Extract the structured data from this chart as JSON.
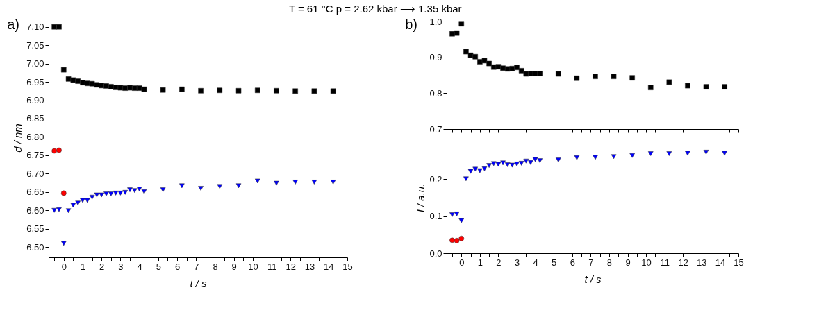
{
  "chart_data": [
    {
      "type": "scatter",
      "title": "T = 61 °C   p = 2.62 kbar ⟶ 1.35 kbar",
      "xlabel": "t / s",
      "ylabel": "d / nm",
      "annotations": [
        "a)"
      ],
      "x": [
        -0.5,
        -0.25,
        0,
        0.25,
        0.5,
        0.75,
        1,
        1.25,
        1.5,
        1.75,
        2,
        2.25,
        2.5,
        2.75,
        3,
        3.25,
        3.5,
        3.75,
        4,
        4.25,
        5.25,
        6.25,
        7.25,
        8.25,
        9.25,
        10.25,
        11.25,
        12.25,
        13.25,
        14.25
      ],
      "xlim": [
        -0.8,
        15
      ],
      "xticks": [
        0,
        1,
        2,
        3,
        4,
        5,
        6,
        7,
        8,
        9,
        10,
        11,
        12,
        13,
        14,
        15
      ],
      "ylim": [
        6.472,
        7.124
      ],
      "yticks": [
        {
          "value": 6.5,
          "label": "6.50"
        },
        6.55,
        {
          "value": 6.6,
          "label": "6.60"
        },
        6.65,
        {
          "value": 6.7,
          "label": "6.70"
        },
        6.75,
        {
          "value": 6.8,
          "label": "6.80"
        },
        6.85,
        {
          "value": 6.9,
          "label": "6.90"
        },
        6.95,
        {
          "value": 7,
          "label": "7.00"
        },
        7.05,
        {
          "value": 7.1,
          "label": "7.10"
        }
      ],
      "series": [
        {
          "color": "#000000",
          "marker": "square",
          "values": [
            7.1,
            7.1,
            6.983,
            6.958,
            6.955,
            6.952,
            6.948,
            6.946,
            6.945,
            6.942,
            6.94,
            6.939,
            6.937,
            6.935,
            6.934,
            6.933,
            6.934,
            6.933,
            6.933,
            6.93,
            6.928,
            6.93,
            6.926,
            6.927,
            6.926,
            6.927,
            6.926,
            6.925,
            6.925,
            6.925
          ]
        },
        {
          "color": "#ff0000",
          "marker": "circle",
          "x": [
            -0.5,
            -0.25,
            0
          ],
          "values": [
            6.762,
            6.764,
            6.647
          ]
        },
        {
          "color": "#0000ff",
          "marker": "triangle",
          "values": [
            6.6,
            6.602,
            6.51,
            6.599,
            6.614,
            6.62,
            6.627,
            6.627,
            6.636,
            6.642,
            6.642,
            6.645,
            6.645,
            6.647,
            6.647,
            6.649,
            6.656,
            6.654,
            6.658,
            6.651,
            6.656,
            6.667,
            6.66,
            6.665,
            6.667,
            6.68,
            6.674,
            6.677,
            6.677,
            6.677
          ]
        }
      ]
    },
    {
      "type": "scatter",
      "annotations": [
        "b)"
      ],
      "tick_labels": "y",
      "x": [
        -0.5,
        -0.25,
        0,
        0.25,
        0.5,
        0.75,
        1,
        1.25,
        1.5,
        1.75,
        2,
        2.25,
        2.5,
        2.75,
        3,
        3.25,
        3.5,
        3.75,
        4,
        4.25,
        5.25,
        6.25,
        7.25,
        8.25,
        9.25,
        10.25,
        11.25,
        12.25,
        13.25,
        14.25
      ],
      "xlim": [
        -0.8,
        15
      ],
      "xticks": [
        0,
        1,
        2,
        3,
        4,
        5,
        6,
        7,
        8,
        9,
        10,
        11,
        12,
        13,
        14,
        15
      ],
      "ylim": [
        0.7,
        1.01
      ],
      "yticks": [
        0.7,
        0.8,
        0.9,
        {
          "value": 1,
          "label": "1.0"
        }
      ],
      "series": [
        {
          "color": "#000000",
          "marker": "square",
          "values": [
            0.966,
            0.968,
            0.994,
            0.916,
            0.906,
            0.902,
            0.888,
            0.891,
            0.883,
            0.873,
            0.874,
            0.87,
            0.868,
            0.869,
            0.872,
            0.863,
            0.854,
            0.855,
            0.855,
            0.855,
            0.854,
            0.842,
            0.847,
            0.847,
            0.843,
            0.816,
            0.831,
            0.821,
            0.818,
            0.818
          ]
        }
      ]
    },
    {
      "type": "scatter",
      "xlabel": "t / s",
      "ylabel": "I / a.u.",
      "x": [
        -0.5,
        -0.25,
        0,
        0.25,
        0.5,
        0.75,
        1,
        1.25,
        1.5,
        1.75,
        2,
        2.25,
        2.5,
        2.75,
        3,
        3.25,
        3.5,
        3.75,
        4,
        4.25,
        5.25,
        6.25,
        7.25,
        8.25,
        9.25,
        10.25,
        11.25,
        12.25,
        13.25,
        14.25
      ],
      "xlim": [
        -0.8,
        15
      ],
      "xticks": [
        0,
        1,
        2,
        3,
        4,
        5,
        6,
        7,
        8,
        9,
        10,
        11,
        12,
        13,
        14,
        15
      ],
      "ylim": [
        0,
        0.3
      ],
      "yticks": [
        {
          "value": 0,
          "label": "0.0"
        },
        0.1,
        0.2
      ],
      "series": [
        {
          "color": "#ff0000",
          "marker": "circle",
          "x": [
            -0.5,
            -0.25,
            0
          ],
          "values": [
            0.035,
            0.034,
            0.04
          ]
        },
        {
          "color": "#0000ff",
          "marker": "triangle",
          "values": [
            0.104,
            0.106,
            0.088,
            0.201,
            0.221,
            0.227,
            0.223,
            0.228,
            0.237,
            0.242,
            0.24,
            0.244,
            0.239,
            0.238,
            0.241,
            0.243,
            0.249,
            0.245,
            0.253,
            0.25,
            0.252,
            0.258,
            0.259,
            0.261,
            0.264,
            0.269,
            0.269,
            0.27,
            0.273,
            0.27
          ]
        }
      ]
    }
  ]
}
